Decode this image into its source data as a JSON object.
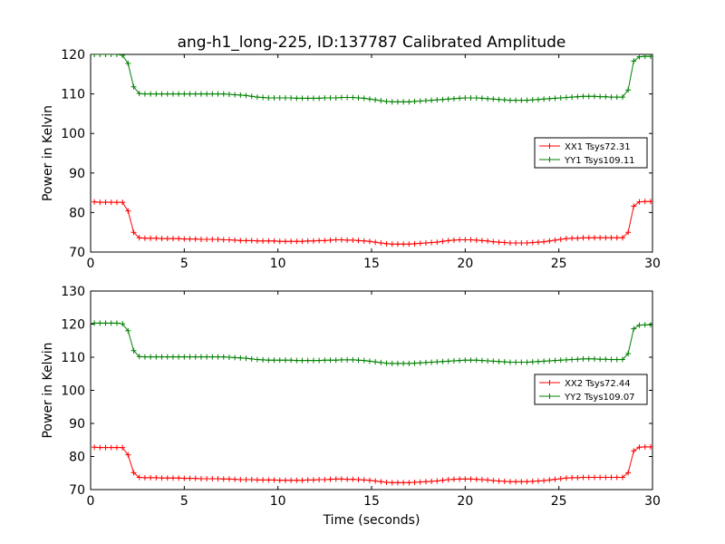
{
  "figure": {
    "title": "ang-h1_long-225, ID:137787 Calibrated Amplitude",
    "xlabel": "Time (seconds)"
  },
  "chart_data": [
    {
      "type": "line",
      "ylabel": "Power in Kelvin",
      "xlim": [
        0,
        30
      ],
      "ylim": [
        70,
        120
      ],
      "xticks": [
        0,
        5,
        10,
        15,
        20,
        25,
        30
      ],
      "yticks": [
        70,
        80,
        90,
        100,
        110,
        120
      ],
      "grid": false,
      "legend_position": "center-right",
      "x_start": 0.2,
      "x_step": 0.3,
      "series": [
        {
          "name": "XX1 Tsys72.31",
          "color": "#ff0000",
          "values": [
            82.7,
            82.6,
            82.6,
            82.6,
            82.6,
            82.6,
            80.4,
            75.0,
            73.6,
            73.5,
            73.5,
            73.5,
            73.4,
            73.4,
            73.4,
            73.4,
            73.3,
            73.3,
            73.3,
            73.2,
            73.2,
            73.2,
            73.2,
            73.1,
            73.1,
            73.0,
            72.9,
            72.9,
            72.9,
            72.8,
            72.8,
            72.8,
            72.8,
            72.7,
            72.7,
            72.7,
            72.7,
            72.7,
            72.8,
            72.8,
            72.9,
            72.9,
            73.0,
            73.1,
            73.1,
            73.0,
            73.0,
            72.9,
            72.8,
            72.7,
            72.5,
            72.3,
            72.1,
            72.0,
            72.0,
            72.0,
            72.0,
            72.1,
            72.2,
            72.3,
            72.4,
            72.5,
            72.7,
            72.9,
            73.0,
            73.1,
            73.1,
            73.1,
            73.0,
            72.9,
            72.8,
            72.6,
            72.5,
            72.4,
            72.3,
            72.3,
            72.3,
            72.3,
            72.4,
            72.5,
            72.6,
            72.8,
            73.0,
            73.2,
            73.4,
            73.5,
            73.5,
            73.6,
            73.6,
            73.6,
            73.6,
            73.6,
            73.6,
            73.6,
            73.6,
            75.0,
            81.6,
            82.7,
            82.8,
            82.8,
            82.8,
            82.7
          ]
        },
        {
          "name": "YY1 Tsys109.11",
          "color": "#008000",
          "values": [
            120.0,
            120.0,
            120.0,
            120.0,
            120.0,
            119.8,
            117.7,
            111.8,
            110.1,
            110.0,
            110.0,
            110.0,
            110.0,
            110.0,
            110.0,
            110.0,
            110.0,
            110.0,
            110.0,
            110.0,
            110.0,
            110.0,
            110.0,
            110.0,
            109.9,
            109.8,
            109.7,
            109.6,
            109.4,
            109.2,
            109.1,
            109.0,
            109.0,
            109.0,
            109.0,
            109.0,
            108.9,
            108.9,
            108.9,
            108.9,
            108.9,
            109.0,
            109.0,
            109.0,
            109.1,
            109.1,
            109.1,
            109.0,
            108.9,
            108.7,
            108.5,
            108.3,
            108.1,
            108.0,
            108.0,
            108.0,
            108.0,
            108.1,
            108.2,
            108.3,
            108.4,
            108.5,
            108.6,
            108.7,
            108.8,
            108.9,
            109.0,
            109.0,
            109.0,
            108.9,
            108.8,
            108.7,
            108.6,
            108.5,
            108.4,
            108.4,
            108.4,
            108.4,
            108.5,
            108.6,
            108.7,
            108.8,
            108.9,
            109.0,
            109.1,
            109.2,
            109.3,
            109.4,
            109.4,
            109.4,
            109.3,
            109.3,
            109.2,
            109.2,
            109.2,
            111.0,
            118.3,
            119.4,
            119.5,
            119.5,
            119.5,
            119.4
          ]
        }
      ]
    },
    {
      "type": "line",
      "ylabel": "Power in Kelvin",
      "xlim": [
        0,
        30
      ],
      "ylim": [
        70,
        130
      ],
      "xticks": [
        0,
        5,
        10,
        15,
        20,
        25,
        30
      ],
      "yticks": [
        70,
        80,
        90,
        100,
        110,
        120,
        130
      ],
      "grid": false,
      "legend_position": "center-right",
      "x_start": 0.2,
      "x_step": 0.3,
      "series": [
        {
          "name": "XX2 Tsys72.44",
          "color": "#ff0000",
          "values": [
            82.8,
            82.7,
            82.7,
            82.7,
            82.7,
            82.7,
            80.5,
            75.1,
            73.7,
            73.6,
            73.6,
            73.6,
            73.5,
            73.5,
            73.5,
            73.5,
            73.4,
            73.4,
            73.4,
            73.3,
            73.3,
            73.3,
            73.3,
            73.2,
            73.2,
            73.1,
            73.0,
            73.0,
            73.0,
            72.9,
            72.9,
            72.9,
            72.9,
            72.8,
            72.8,
            72.8,
            72.8,
            72.8,
            72.9,
            72.9,
            73.0,
            73.0,
            73.1,
            73.2,
            73.2,
            73.1,
            73.1,
            73.0,
            72.9,
            72.8,
            72.6,
            72.4,
            72.2,
            72.1,
            72.1,
            72.1,
            72.1,
            72.2,
            72.3,
            72.4,
            72.5,
            72.6,
            72.8,
            73.0,
            73.1,
            73.2,
            73.2,
            73.2,
            73.1,
            73.0,
            72.9,
            72.7,
            72.6,
            72.5,
            72.4,
            72.4,
            72.4,
            72.4,
            72.5,
            72.6,
            72.7,
            72.9,
            73.1,
            73.3,
            73.5,
            73.6,
            73.6,
            73.7,
            73.7,
            73.7,
            73.7,
            73.7,
            73.7,
            73.7,
            73.7,
            75.1,
            81.7,
            82.8,
            82.9,
            82.9,
            82.9,
            82.8
          ]
        },
        {
          "name": "YY2 Tsys109.07",
          "color": "#008000",
          "values": [
            120.3,
            120.3,
            120.3,
            120.3,
            120.3,
            120.1,
            118.0,
            112.0,
            110.2,
            110.1,
            110.1,
            110.1,
            110.1,
            110.1,
            110.1,
            110.1,
            110.1,
            110.1,
            110.1,
            110.1,
            110.1,
            110.1,
            110.1,
            110.1,
            110.0,
            109.9,
            109.8,
            109.7,
            109.5,
            109.3,
            109.2,
            109.1,
            109.1,
            109.1,
            109.1,
            109.1,
            109.0,
            109.0,
            109.0,
            109.0,
            109.0,
            109.1,
            109.1,
            109.1,
            109.2,
            109.2,
            109.2,
            109.1,
            109.0,
            108.8,
            108.6,
            108.4,
            108.2,
            108.1,
            108.1,
            108.1,
            108.1,
            108.2,
            108.3,
            108.4,
            108.5,
            108.6,
            108.7,
            108.8,
            108.9,
            109.0,
            109.1,
            109.1,
            109.1,
            109.0,
            108.9,
            108.8,
            108.7,
            108.6,
            108.5,
            108.5,
            108.5,
            108.5,
            108.6,
            108.7,
            108.8,
            108.9,
            109.0,
            109.1,
            109.2,
            109.3,
            109.4,
            109.5,
            109.5,
            109.5,
            109.4,
            109.4,
            109.3,
            109.3,
            109.3,
            111.1,
            118.6,
            119.7,
            119.8,
            119.8,
            119.8,
            119.7
          ]
        }
      ]
    }
  ]
}
